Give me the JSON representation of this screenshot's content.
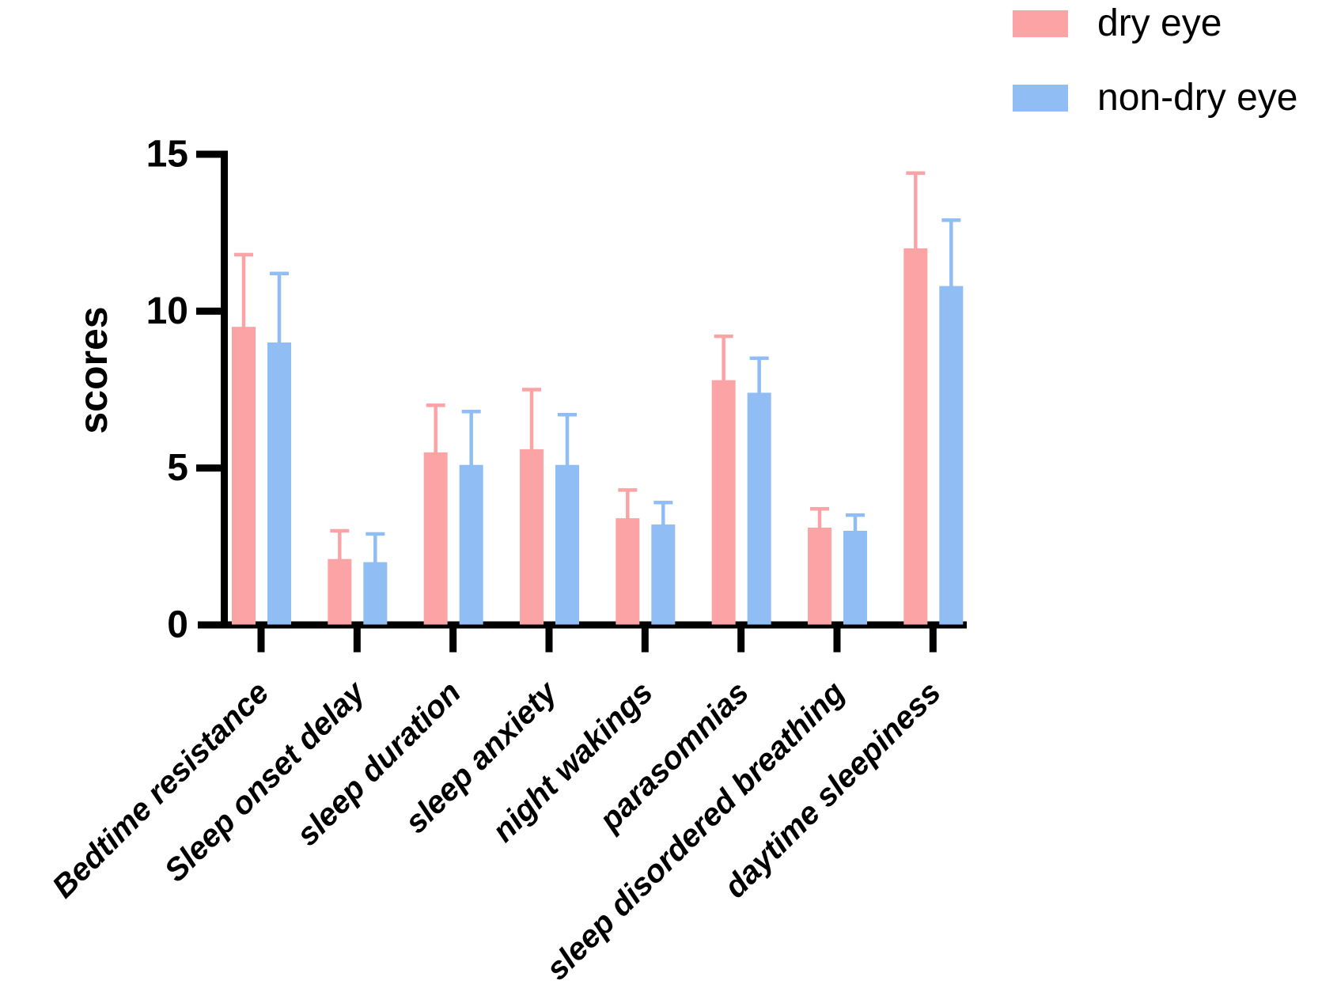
{
  "chart_data": {
    "type": "bar",
    "title": "",
    "xlabel": "",
    "ylabel": "scores",
    "ylim": [
      0,
      15
    ],
    "yticks": [
      0,
      5,
      10,
      15
    ],
    "grid": false,
    "axis_color": "#000000",
    "error_bars": "upper",
    "legend": {
      "position": "top-right"
    },
    "categories": [
      "Bedtime resistance",
      "Sleep onset delay",
      "sleep duration",
      "sleep anxiety",
      "night wakings",
      "parasomnias",
      "sleep disordered breathing",
      "daytime sleepiness"
    ],
    "series": [
      {
        "name": "dry eye",
        "color": "#FCA3A6",
        "values": [
          9.5,
          2.1,
          5.5,
          5.6,
          3.4,
          7.8,
          3.1,
          12.0
        ],
        "errors_plus": [
          2.3,
          0.9,
          1.5,
          1.9,
          0.9,
          1.4,
          0.6,
          2.4
        ]
      },
      {
        "name": "non-dry eye",
        "color": "#90BEF4",
        "values": [
          9.0,
          2.0,
          5.1,
          5.1,
          3.2,
          7.4,
          3.0,
          10.8
        ],
        "errors_plus": [
          2.2,
          0.9,
          1.7,
          1.6,
          0.7,
          1.1,
          0.5,
          2.1
        ]
      }
    ]
  }
}
